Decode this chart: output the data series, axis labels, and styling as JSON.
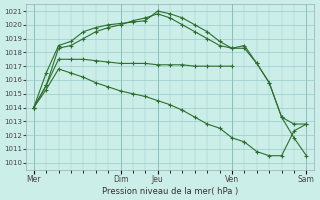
{
  "bg_color": "#cceee8",
  "grid_color": "#99cccc",
  "line_color": "#2d6e2d",
  "ylim": [
    1009.5,
    1021.5
  ],
  "yticks": [
    1010,
    1011,
    1012,
    1013,
    1014,
    1015,
    1016,
    1017,
    1018,
    1019,
    1020,
    1021
  ],
  "xlabel": "Pression niveau de la mer( hPa )",
  "day_labels": [
    "Mer",
    "Dim",
    "Jeu",
    "Ven",
    "Sam"
  ],
  "day_positions": [
    0.0,
    3.5,
    5.0,
    8.0,
    11.0
  ],
  "xlim": [
    -0.3,
    11.3
  ],
  "line1_x": [
    0,
    0.5,
    1.0,
    1.5,
    2.0,
    2.5,
    3.0,
    3.5,
    4.0,
    4.5,
    5.0,
    5.5,
    6.0,
    6.5,
    7.0,
    7.5,
    8.0
  ],
  "line1_y": [
    1014.0,
    1015.6,
    1017.5,
    1017.5,
    1017.5,
    1017.4,
    1017.3,
    1017.2,
    1017.2,
    1017.2,
    1017.1,
    1017.1,
    1017.1,
    1017.0,
    1017.0,
    1017.0,
    1017.0
  ],
  "line2_x": [
    0,
    0.5,
    1.0,
    1.5,
    2.0,
    2.5,
    3.0,
    3.5,
    4.0,
    4.5,
    5.0,
    5.5,
    6.0,
    6.5,
    7.0,
    7.5,
    8.0,
    8.5,
    9.0,
    9.5,
    10.0,
    10.5,
    11.0
  ],
  "line2_y": [
    1014.0,
    1016.5,
    1018.5,
    1018.8,
    1019.5,
    1019.8,
    1020.0,
    1020.1,
    1020.2,
    1020.3,
    1021.0,
    1020.8,
    1020.5,
    1020.0,
    1019.5,
    1018.8,
    1018.3,
    1018.5,
    1017.2,
    1015.8,
    1013.3,
    1012.8,
    1012.8
  ],
  "line3_x": [
    0,
    0.5,
    1.0,
    1.5,
    2.0,
    2.5,
    3.0,
    3.5,
    4.0,
    4.5,
    5.0,
    5.5,
    6.0,
    6.5,
    7.0,
    7.5,
    8.0,
    8.5,
    9.0,
    9.5,
    10.0,
    10.5,
    11.0
  ],
  "line3_y": [
    1014.0,
    1015.3,
    1016.8,
    1016.5,
    1016.2,
    1015.8,
    1015.5,
    1015.2,
    1015.0,
    1014.8,
    1014.5,
    1014.2,
    1013.8,
    1013.3,
    1012.8,
    1012.5,
    1011.8,
    1011.5,
    1010.8,
    1010.5,
    1010.5,
    1012.3,
    1012.8
  ],
  "line4_x": [
    0,
    0.5,
    1.0,
    1.5,
    2.0,
    2.5,
    3.0,
    3.5,
    4.0,
    4.5,
    5.0,
    5.5,
    6.0,
    6.5,
    7.0,
    7.5,
    8.0,
    8.5,
    9.0,
    9.5,
    10.0,
    10.5,
    11.0
  ],
  "line4_y": [
    1014.0,
    1015.6,
    1018.3,
    1018.5,
    1019.0,
    1019.5,
    1019.8,
    1020.0,
    1020.3,
    1020.5,
    1020.8,
    1020.5,
    1020.0,
    1019.5,
    1019.0,
    1018.5,
    1018.3,
    1018.3,
    1017.2,
    1015.8,
    1013.3,
    1011.8,
    1010.5
  ]
}
